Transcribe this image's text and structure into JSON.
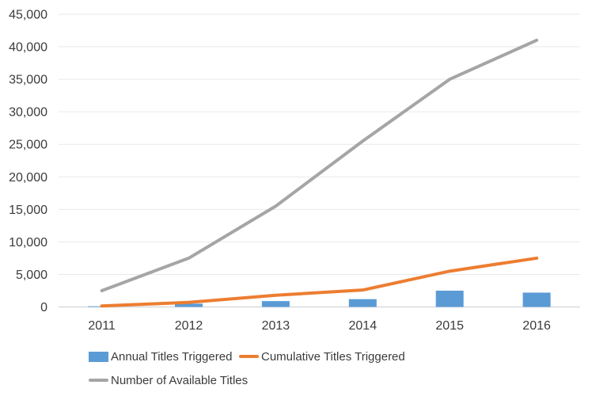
{
  "chart_data": {
    "type": "combo",
    "title": "",
    "categories": [
      "2011",
      "2012",
      "2013",
      "2014",
      "2015",
      "2016"
    ],
    "series": [
      {
        "name": "Annual Titles Triggered",
        "type": "bar",
        "color": "#5B9BD5",
        "values": [
          100,
          500,
          900,
          1200,
          2500,
          2200
        ]
      },
      {
        "name": "Cumulative Titles Triggered",
        "type": "line",
        "color": "#ED7D31",
        "values": [
          150,
          700,
          1800,
          2600,
          5500,
          7500
        ]
      },
      {
        "name": "Number of Available Titles",
        "type": "line",
        "color": "#A5A5A5",
        "values": [
          2500,
          7500,
          15500,
          25500,
          35000,
          41000
        ]
      }
    ],
    "xlabel": "",
    "ylabel": "",
    "ylim": [
      0,
      45000
    ],
    "ytick_step": 5000,
    "ytick_labels": [
      "0",
      "5,000",
      "10,000",
      "15,000",
      "20,000",
      "25,000",
      "30,000",
      "35,000",
      "40,000",
      "45,000"
    ],
    "grid": true,
    "legend_position": "bottom-left",
    "colors": {
      "grid": "#E7E9EA",
      "axis": "#D7DADC",
      "text": "#3B3B3B",
      "background": "#FFFFFF"
    }
  }
}
